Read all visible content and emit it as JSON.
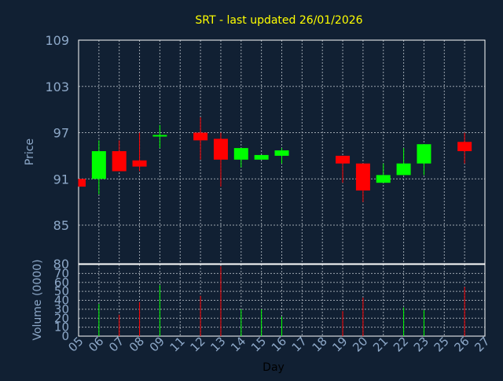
{
  "colors": {
    "background": "#112033",
    "plot_border": "#ffffff",
    "grid": "#9aa3ad",
    "title": "#ffff00",
    "axis_text": "#8da8c8",
    "axis_label": "#8da8c8",
    "up": "#00ff00",
    "down": "#ff0000",
    "day_label": "#000000"
  },
  "chart_data": [
    {
      "type": "candlestick",
      "title": "SRT - last updated 26/01/2026",
      "ylabel": "Price",
      "ylim": [
        80,
        109
      ],
      "yticks": [
        85,
        91,
        97,
        103,
        109
      ],
      "yticks_extra": [
        80
      ],
      "categories": [
        "05",
        "06",
        "07",
        "08",
        "09",
        "11",
        "12",
        "13",
        "14",
        "15",
        "16",
        "17",
        "18",
        "19",
        "20",
        "21",
        "22",
        "23",
        "25",
        "26",
        "27"
      ],
      "grid": true,
      "candles": [
        {
          "day": "05",
          "open": 91.0,
          "close": 90.0,
          "high": 91.0,
          "low": 90.0
        },
        {
          "day": "06",
          "open": 91.0,
          "close": 94.6,
          "high": 96.0,
          "low": 89.0
        },
        {
          "day": "07",
          "open": 94.6,
          "close": 92.0,
          "high": 96.0,
          "low": 92.0
        },
        {
          "day": "08",
          "open": 93.4,
          "close": 92.6,
          "high": 97.0,
          "low": 92.0
        },
        {
          "day": "09",
          "open": 96.5,
          "close": 96.7,
          "high": 98.0,
          "low": 95.0
        },
        {
          "day": "12",
          "open": 97.0,
          "close": 96.0,
          "high": 99.0,
          "low": 93.5
        },
        {
          "day": "13",
          "open": 96.2,
          "close": 93.5,
          "high": 97.0,
          "low": 90.0
        },
        {
          "day": "14",
          "open": 93.5,
          "close": 95.0,
          "high": 95.0,
          "low": 92.5
        },
        {
          "day": "15",
          "open": 93.5,
          "close": 94.1,
          "high": 94.1,
          "low": 93.5
        },
        {
          "day": "16",
          "open": 94.0,
          "close": 94.7,
          "high": 95.0,
          "low": 93.0
        },
        {
          "day": "19",
          "open": 94.0,
          "close": 93.0,
          "high": 94.0,
          "low": 90.5
        },
        {
          "day": "20",
          "open": 93.0,
          "close": 89.5,
          "high": 93.0,
          "low": 88.0
        },
        {
          "day": "21",
          "open": 90.5,
          "close": 91.5,
          "high": 93.0,
          "low": 90.5
        },
        {
          "day": "22",
          "open": 91.5,
          "close": 93.0,
          "high": 95.0,
          "low": 91.5
        },
        {
          "day": "23",
          "open": 93.0,
          "close": 95.5,
          "high": 95.5,
          "low": 91.5
        },
        {
          "day": "26",
          "open": 95.8,
          "close": 94.6,
          "high": 97.0,
          "low": 93.0
        }
      ]
    },
    {
      "type": "bar",
      "ylabel": "Volume (0000)",
      "xlabel": "Day",
      "ylim": [
        0,
        80
      ],
      "yticks": [
        0,
        10,
        20,
        30,
        40,
        50,
        60,
        70
      ],
      "yticks_top_label": "80",
      "categories": [
        "05",
        "06",
        "07",
        "08",
        "09",
        "11",
        "12",
        "13",
        "14",
        "15",
        "16",
        "17",
        "18",
        "19",
        "20",
        "21",
        "22",
        "23",
        "25",
        "26",
        "27"
      ],
      "bars": [
        {
          "day": "06",
          "value": 36,
          "direction": "up"
        },
        {
          "day": "07",
          "value": 24,
          "direction": "down"
        },
        {
          "day": "08",
          "value": 38,
          "direction": "down"
        },
        {
          "day": "09",
          "value": 57,
          "direction": "up"
        },
        {
          "day": "12",
          "value": 45,
          "direction": "down"
        },
        {
          "day": "13",
          "value": 78,
          "direction": "down"
        },
        {
          "day": "14",
          "value": 30,
          "direction": "up"
        },
        {
          "day": "15",
          "value": 30,
          "direction": "up"
        },
        {
          "day": "16",
          "value": 22,
          "direction": "up"
        },
        {
          "day": "19",
          "value": 28,
          "direction": "down"
        },
        {
          "day": "20",
          "value": 43,
          "direction": "down"
        },
        {
          "day": "22",
          "value": 32,
          "direction": "up"
        },
        {
          "day": "23",
          "value": 29,
          "direction": "up"
        },
        {
          "day": "26",
          "value": 55,
          "direction": "down"
        }
      ]
    }
  ]
}
